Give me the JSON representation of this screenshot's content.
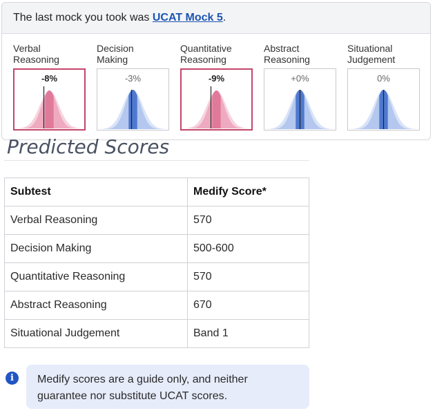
{
  "banner": {
    "prefix": "The last mock you took was ",
    "mock_link": "UCAT Mock 5",
    "suffix": "."
  },
  "tiles": [
    {
      "line1": "Verbal",
      "line2": "Reasoning",
      "change": "-8%",
      "highlight": true,
      "palette": "pink"
    },
    {
      "line1": "Decision",
      "line2": "Making",
      "change": "-3%",
      "highlight": false,
      "palette": "blue"
    },
    {
      "line1": "Quantitative",
      "line2": "Reasoning",
      "change": "-9%",
      "highlight": true,
      "palette": "pink"
    },
    {
      "line1": "Abstract",
      "line2": "Reasoning",
      "change": "+0%",
      "highlight": false,
      "palette": "blue"
    },
    {
      "line1": "Situational",
      "line2": "Judgement",
      "change": "0%",
      "highlight": false,
      "palette": "blue"
    }
  ],
  "colors": {
    "highlight_border": "#c2466a",
    "pink_main": "#e07a9a",
    "blue_main": "#4f79d0",
    "link": "#1c54b2",
    "info_bg": "#e6ecfa",
    "info_icon": "#2155c4"
  },
  "section_title": "Predicted Scores",
  "table": {
    "headers": [
      "Subtest",
      "Medify Score*"
    ],
    "rows": [
      [
        "Verbal Reasoning",
        "570"
      ],
      [
        "Decision Making",
        "500-600"
      ],
      [
        "Quantitative Reasoning",
        "570"
      ],
      [
        "Abstract Reasoning",
        "670"
      ],
      [
        "Situational Judgement",
        "Band 1"
      ]
    ]
  },
  "info": {
    "icon": "info-icon",
    "text": "Medify scores are a guide only, and neither guarantee nor substitute UCAT scores."
  }
}
